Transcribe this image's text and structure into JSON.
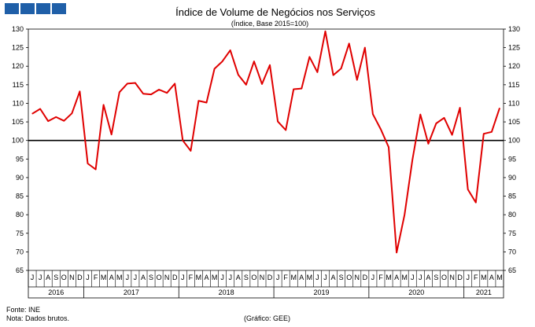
{
  "chart_data": {
    "type": "line",
    "title": "Índice de Volume de Negócios nos Serviços",
    "subtitle": "(Índice, Base 2015=100)",
    "ylim": [
      65,
      130
    ],
    "yticks": [
      65,
      70,
      75,
      80,
      85,
      90,
      95,
      100,
      105,
      110,
      115,
      120,
      125,
      130
    ],
    "reference_line": 100,
    "grid": false,
    "legend": "none",
    "line_color": "#e00000",
    "month_labels": [
      "J",
      "J",
      "A",
      "S",
      "O",
      "N",
      "D",
      "J",
      "F",
      "M",
      "A",
      "M",
      "J",
      "J",
      "A",
      "S",
      "O",
      "N",
      "D",
      "J",
      "F",
      "M",
      "A",
      "M",
      "J",
      "J",
      "A",
      "S",
      "O",
      "N",
      "D",
      "J",
      "F",
      "M",
      "A",
      "M",
      "J",
      "J",
      "A",
      "S",
      "O",
      "N",
      "D",
      "J",
      "F",
      "M",
      "A",
      "M",
      "J",
      "J",
      "A",
      "S",
      "O",
      "N",
      "D",
      "J",
      "F",
      "M",
      "A",
      "M"
    ],
    "year_labels": [
      {
        "label": "2016",
        "months": 7
      },
      {
        "label": "2017",
        "months": 12
      },
      {
        "label": "2018",
        "months": 12
      },
      {
        "label": "2019",
        "months": 12
      },
      {
        "label": "2020",
        "months": 12
      },
      {
        "label": "2021",
        "months": 5
      }
    ],
    "series": [
      {
        "values": [
          107.2,
          108.5,
          105.2,
          106.3,
          105.3,
          107.3,
          113.2,
          93.8,
          92.2,
          109.6,
          101.6,
          113.0,
          115.3,
          115.5,
          112.6,
          112.4,
          113.7,
          112.8,
          115.3,
          100.0,
          97.2,
          110.7,
          110.2,
          119.3,
          121.3,
          124.3,
          117.7,
          115.0,
          121.3,
          115.2,
          120.3,
          105.1,
          102.8,
          113.8,
          114.0,
          122.5,
          118.4,
          129.4,
          117.6,
          119.4,
          126.1,
          116.3,
          125.0,
          107.1,
          103.0,
          98.2,
          69.8,
          80.0,
          94.8,
          107.0,
          99.1,
          104.6,
          106.1,
          101.5,
          108.8,
          86.8,
          83.3,
          101.8,
          102.3,
          108.7
        ]
      }
    ]
  },
  "footer": {
    "source": "Fonte: INE",
    "note": "Nota: Dados brutos.",
    "credit": "(Gráfico: GEE)"
  }
}
